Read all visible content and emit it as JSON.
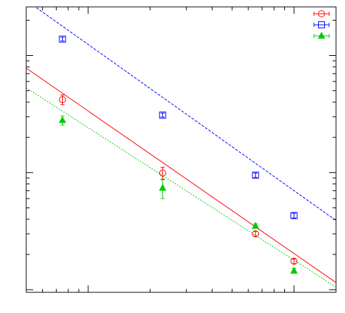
{
  "chart_data": {
    "type": "scatter",
    "title": "",
    "xlabel": "",
    "ylabel": "",
    "x_scale": "log",
    "y_scale": "log",
    "xlim": [
      0.5,
      16
    ],
    "ylim": [
      0.0095,
      2.6
    ],
    "grid": false,
    "legend_position": "top-right",
    "series": [
      {
        "name": "",
        "color": "#ff0000",
        "marker": "circle",
        "points": [
          {
            "x": 0.75,
            "y": 0.42,
            "err": 0.04
          },
          {
            "x": 2.3,
            "y": 0.099,
            "err": 0.012
          },
          {
            "x": 6.5,
            "y": 0.03,
            "err": 0.0015
          },
          {
            "x": 10.0,
            "y": 0.0175,
            "err": 0.0008
          }
        ],
        "fit": {
          "style": "solid",
          "x": [
            0.5,
            16
          ],
          "y": [
            0.78,
            0.0115
          ]
        }
      },
      {
        "name": "",
        "color": "#0000ff",
        "marker": "square",
        "points": [
          {
            "x": 0.75,
            "y": 1.38,
            "err": 0.05
          },
          {
            "x": 2.3,
            "y": 0.31,
            "err": 0.012
          },
          {
            "x": 6.5,
            "y": 0.095,
            "err": 0.004
          },
          {
            "x": 10.0,
            "y": 0.043,
            "err": 0.002
          }
        ],
        "fit": {
          "style": "dashed",
          "x": [
            0.5,
            16
          ],
          "y": [
            2.95,
            0.039
          ]
        }
      },
      {
        "name": "",
        "color": "#00cc00",
        "marker": "triangle",
        "points": [
          {
            "x": 0.75,
            "y": 0.28,
            "err": 0.025
          },
          {
            "x": 2.3,
            "y": 0.074,
            "err": 0.014
          },
          {
            "x": 6.5,
            "y": 0.035,
            "err": 0.0015
          },
          {
            "x": 10.0,
            "y": 0.0145,
            "err": 0.0007
          }
        ],
        "fit": {
          "style": "dotted",
          "x": [
            0.5,
            16
          ],
          "y": [
            0.53,
            0.0105
          ]
        }
      }
    ]
  }
}
